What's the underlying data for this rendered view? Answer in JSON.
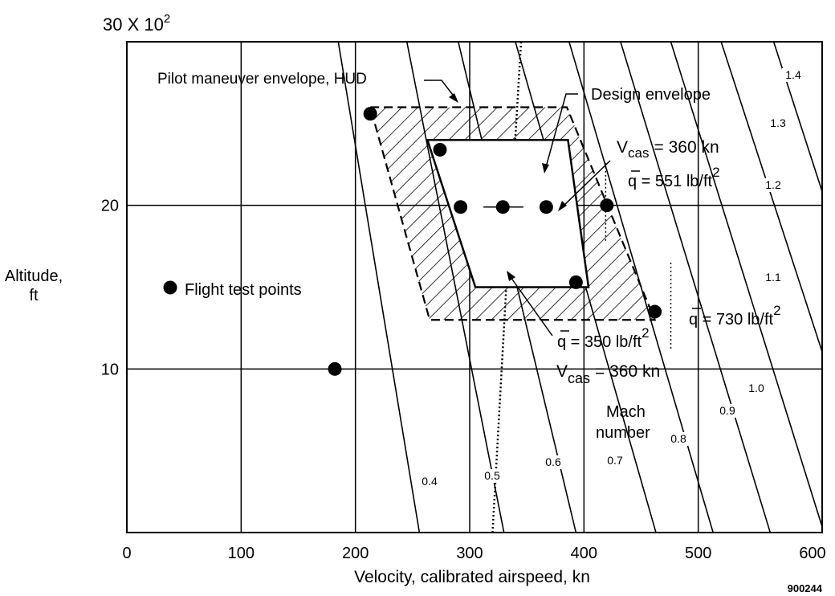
{
  "chart_data": {
    "type": "scatter",
    "xlabel": "Velocity, calibrated airspeed, kn",
    "ylabel_line1": "Altitude,",
    "ylabel_line2": "ft",
    "y_multiplier_base": "30 X 10",
    "y_multiplier_exp": "2",
    "figure_id": "900244",
    "xlim": [
      0,
      600
    ],
    "ylim": [
      0,
      3000
    ],
    "x_ticks": [
      {
        "v": 0,
        "label": "0"
      },
      {
        "v": 100,
        "label": "100"
      },
      {
        "v": 200,
        "label": "200"
      },
      {
        "v": 300,
        "label": "300"
      },
      {
        "v": 400,
        "label": "400"
      },
      {
        "v": 500,
        "label": "500"
      },
      {
        "v": 600,
        "label": "600"
      }
    ],
    "y_ticks": [
      {
        "v": 1000,
        "label": "10"
      },
      {
        "v": 2000,
        "label": "20"
      }
    ],
    "grid": true,
    "flight_test_points": [
      {
        "x": 213,
        "y": 2560
      },
      {
        "x": 274,
        "y": 2340
      },
      {
        "x": 292,
        "y": 1990
      },
      {
        "x": 329,
        "y": 1990
      },
      {
        "x": 367,
        "y": 1990
      },
      {
        "x": 393,
        "y": 1530
      },
      {
        "x": 420,
        "y": 2000
      },
      {
        "x": 462,
        "y": 1350
      },
      {
        "x": 182,
        "y": 1000
      }
    ],
    "pilot_envelope": [
      [
        213,
        2600
      ],
      [
        385,
        2600
      ],
      [
        462,
        1300
      ],
      [
        265,
        1300
      ]
    ],
    "design_envelope": [
      [
        263,
        2400
      ],
      [
        386,
        2400
      ],
      [
        404,
        1500
      ],
      [
        305,
        1500
      ]
    ],
    "mach_lines": [
      {
        "label": "0.4",
        "x_top": 185,
        "x_bot": 256
      },
      {
        "label": "0.5",
        "x_top": 245,
        "x_bot": 330
      },
      {
        "label": "0.6",
        "x_top": 290,
        "x_bot": 393
      },
      {
        "label": "0.7",
        "x_top": 340,
        "x_bot": 463
      },
      {
        "label": "0.8",
        "x_top": 387,
        "x_bot": 513
      },
      {
        "label": "0.9",
        "x_top": 432,
        "x_bot": 563
      },
      {
        "label": "1.0",
        "x_top": 476,
        "x_bot": 610
      },
      {
        "label": "1.1",
        "x_top": 520,
        "x_bot": 660
      },
      {
        "label": "1.2",
        "x_top": 566,
        "x_bot": 705
      },
      {
        "label": "1.3",
        "x_top": 610,
        "x_bot": 752
      },
      {
        "label": "1.4",
        "x_top": 650,
        "x_bot": 795
      }
    ],
    "dotted_line": [
      [
        320,
        0
      ],
      [
        332,
        1500
      ],
      [
        345,
        3000
      ]
    ],
    "q_ticks": [
      {
        "x": 419,
        "y_top": 2260,
        "y_bot": 1780
      },
      {
        "x": 476,
        "y_top": 1650,
        "y_bot": 1120
      }
    ],
    "legend_label": "Flight test points",
    "annotations": {
      "pilot_envelope": "Pilot maneuver envelope, HUD",
      "design_envelope": "Design envelope",
      "vcas_top": "V",
      "vcas_top_sub": "cas",
      "vcas_top_rest": "= 360  kn",
      "q551": "q = 551 lb/ft",
      "q551_exp": "2",
      "q350": "q = 350 lb/ft",
      "q350_exp": "2",
      "q730": "q = 730 lb/ft",
      "q730_exp": "2",
      "vcas_bottom": "V",
      "vcas_bottom_sub": "cas",
      "vcas_bottom_rest": "= 360 kn",
      "mach_title_1": "Mach",
      "mach_title_2": "number"
    }
  }
}
